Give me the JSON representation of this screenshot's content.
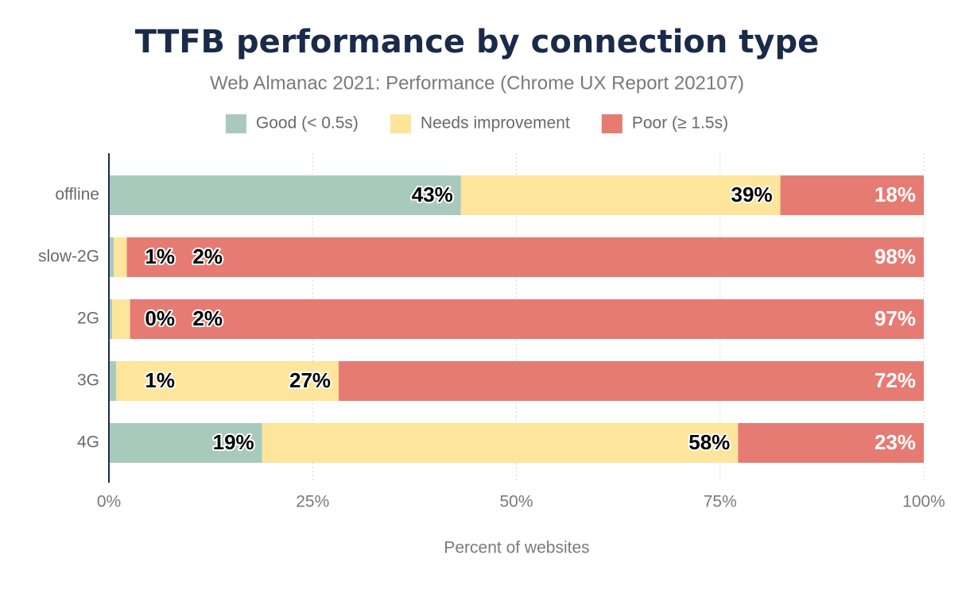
{
  "chart_data": {
    "type": "stacked-bar",
    "orientation": "horizontal",
    "title": "TTFB performance by connection type",
    "subtitle": "Web Almanac 2021: Performance (Chrome UX Report 202107)",
    "x_label": "Percent of websites",
    "categories": [
      "offline",
      "slow-2G",
      "2G",
      "3G",
      "4G"
    ],
    "series": [
      {
        "name": "Good (< 0.5s)",
        "color": "#a8cabc",
        "values": [
          43.2,
          0.6,
          0.4,
          0.9,
          18.8
        ],
        "value_labels": [
          "43%",
          "1%",
          "0%",
          "1%",
          "19%"
        ]
      },
      {
        "name": "Needs improvement",
        "color": "#fde59b",
        "values": [
          39.2,
          1.6,
          2.2,
          27.3,
          58.4
        ],
        "value_labels": [
          "39%",
          "2%",
          "2%",
          "27%",
          "58%"
        ]
      },
      {
        "name": "Poor (≥ 1.5s)",
        "color": "#e67b73",
        "values": [
          17.6,
          97.8,
          97.4,
          71.8,
          22.8
        ],
        "value_labels": [
          "18%",
          "98%",
          "97%",
          "72%",
          "23%"
        ]
      }
    ],
    "xlim": [
      0,
      100
    ],
    "xticks": [
      {
        "value": 0,
        "label": "0%"
      },
      {
        "value": 25,
        "label": "25%"
      },
      {
        "value": 50,
        "label": "50%"
      },
      {
        "value": 75,
        "label": "75%"
      },
      {
        "value": 100,
        "label": "100%"
      }
    ],
    "grid": true,
    "legend": "top"
  }
}
